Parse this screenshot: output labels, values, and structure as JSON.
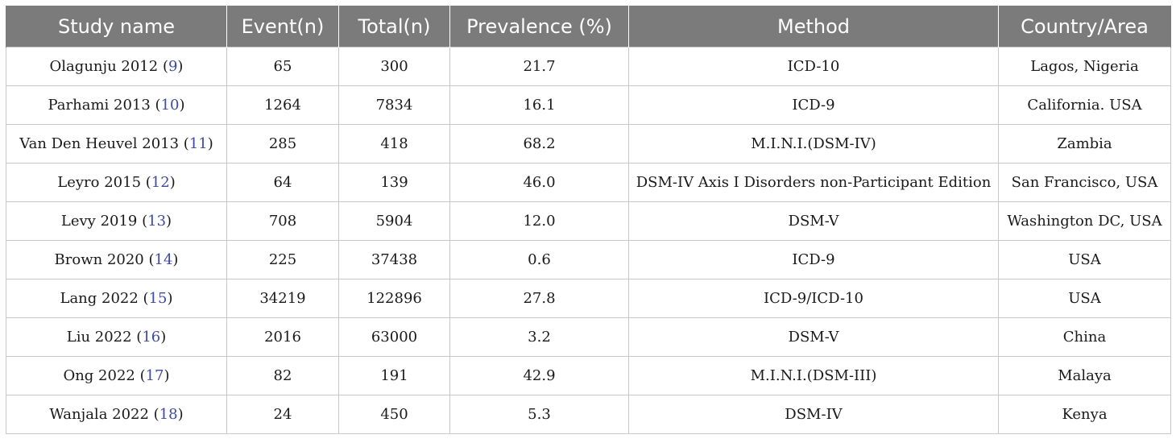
{
  "table": {
    "headers": [
      "Study name",
      "Event(n)",
      "Total(n)",
      "Prevalence (%)",
      "Method",
      "Country/Area"
    ],
    "rows": [
      {
        "study": "Olagunju 2012",
        "ref": "9",
        "event": "65",
        "total": "300",
        "prevalence": "21.7",
        "method": "ICD-10",
        "country": "Lagos, Nigeria"
      },
      {
        "study": "Parhami 2013",
        "ref": "10",
        "event": "1264",
        "total": "7834",
        "prevalence": "16.1",
        "method": "ICD-9",
        "country": "California. USA"
      },
      {
        "study": "Van Den Heuvel 2013",
        "ref": "11",
        "event": "285",
        "total": "418",
        "prevalence": "68.2",
        "method": "M.I.N.I.(DSM-IV)",
        "country": "Zambia"
      },
      {
        "study": "Leyro 2015",
        "ref": "12",
        "event": "64",
        "total": "139",
        "prevalence": "46.0",
        "method": "DSM-IV Axis I Disorders non-Participant Edition",
        "country": "San Francisco, USA"
      },
      {
        "study": "Levy 2019",
        "ref": "13",
        "event": "708",
        "total": "5904",
        "prevalence": "12.0",
        "method": "DSM-V",
        "country": "Washington DC, USA"
      },
      {
        "study": "Brown 2020",
        "ref": "14",
        "event": "225",
        "total": "37438",
        "prevalence": "0.6",
        "method": "ICD-9",
        "country": "USA"
      },
      {
        "study": "Lang 2022",
        "ref": "15",
        "event": "34219",
        "total": "122896",
        "prevalence": "27.8",
        "method": "ICD-9/ICD-10",
        "country": "USA"
      },
      {
        "study": "Liu 2022",
        "ref": "16",
        "event": "2016",
        "total": "63000",
        "prevalence": "3.2",
        "method": "DSM-V",
        "country": "China"
      },
      {
        "study": "Ong 2022",
        "ref": "17",
        "event": "82",
        "total": "191",
        "prevalence": "42.9",
        "method": "M.I.N.I.(DSM-III)",
        "country": "Malaya"
      },
      {
        "study": "Wanjala 2022",
        "ref": "18",
        "event": "24",
        "total": "450",
        "prevalence": "5.3",
        "method": "DSM-IV",
        "country": "Kenya"
      }
    ]
  },
  "colors": {
    "header_bg": "#7b7b7b",
    "header_text": "#ffffff",
    "ref_link": "#3d4aa3",
    "grid": "#c8c8c8"
  }
}
